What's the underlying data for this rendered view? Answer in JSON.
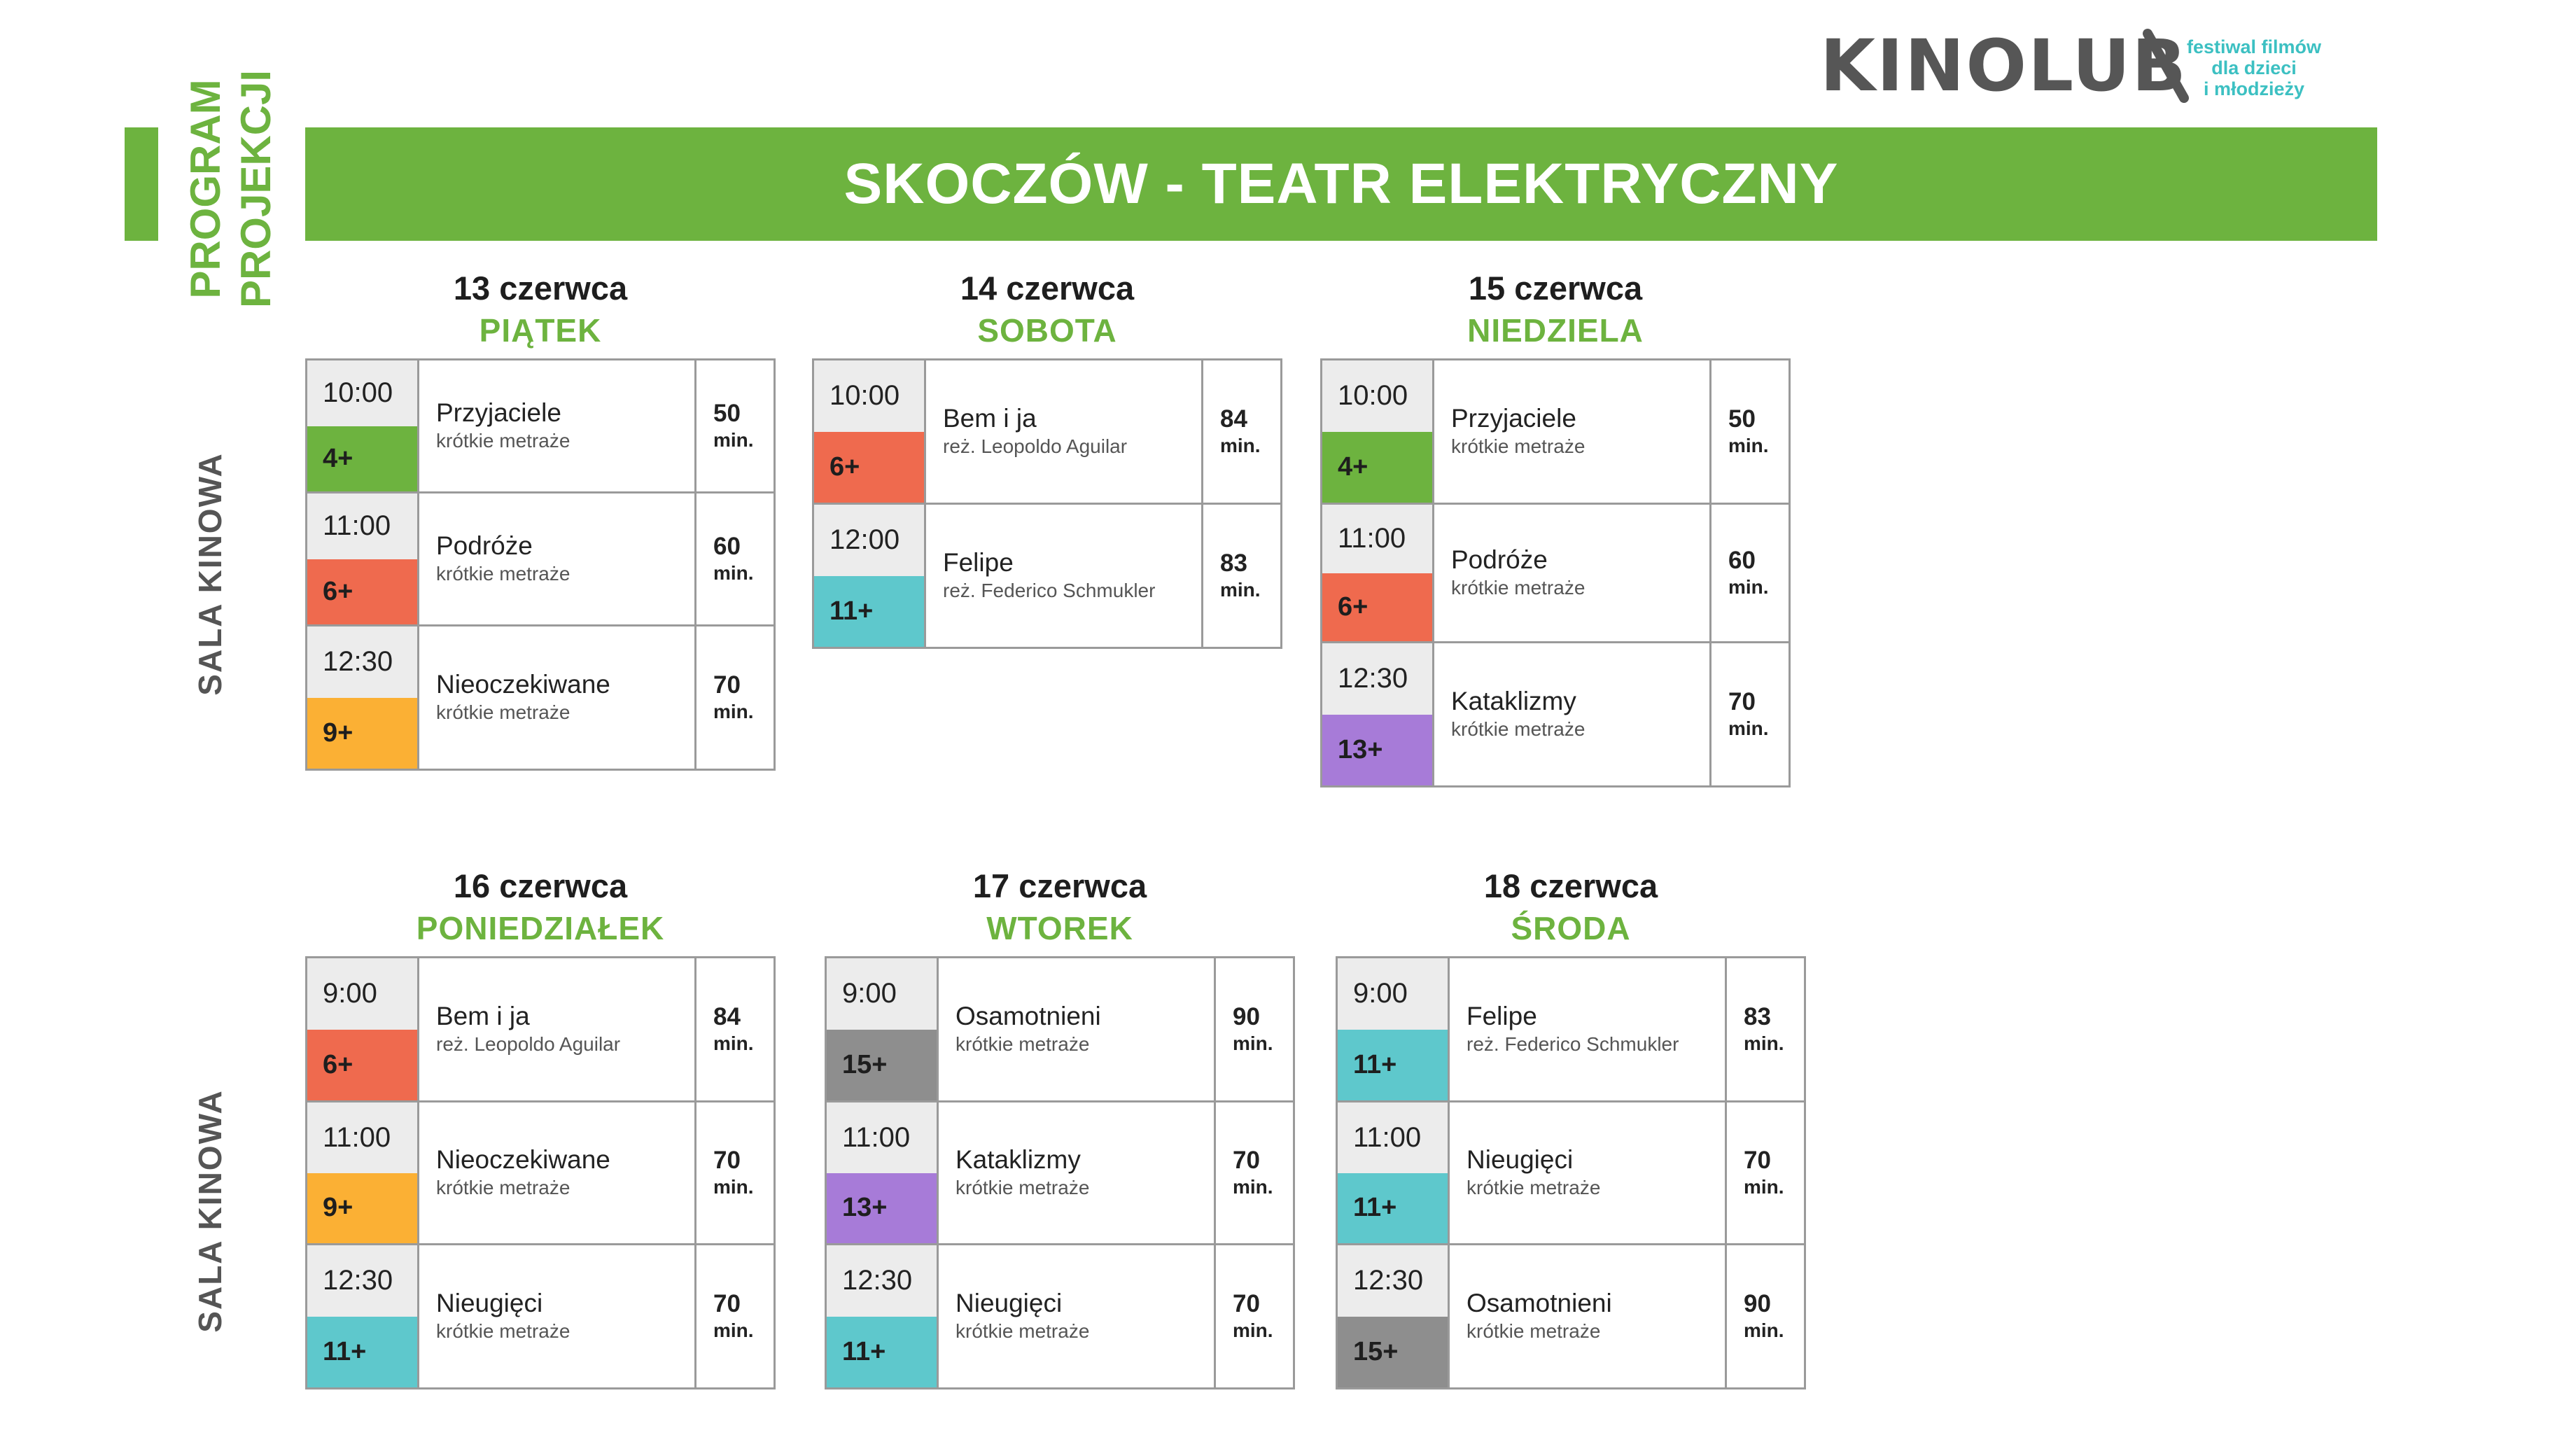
{
  "logo": {
    "wordmark": "KINOLUB",
    "tagline": [
      "festiwal filmów",
      "dla dzieci",
      "i młodzieży"
    ]
  },
  "side_title": [
    "PROGRAM",
    "PROJEKCJI"
  ],
  "banner_title": "SKOCZÓW - TEATR ELEKTRYCZNY",
  "section_label": "SALA KINOWA",
  "colors": {
    "brand_green": "#6db33f",
    "age_4": "#6db33f",
    "age_6": "#ef6a4e",
    "age_9": "#fbb034",
    "age_11": "#5ec8cc",
    "age_13": "#a77bd8",
    "age_15": "#8e8e8e",
    "time_bg": "#ececec"
  },
  "days": [
    {
      "date": "13 czerwca",
      "weekday": "PIĄTEK",
      "entries": [
        {
          "time": "10:00",
          "age": "4+",
          "title": "Przyjaciele",
          "subtitle": "krótkie metraże",
          "duration": "50",
          "unit": "min."
        },
        {
          "time": "11:00",
          "age": "6+",
          "title": "Podróże",
          "subtitle": "krótkie metraże",
          "duration": "60",
          "unit": "min."
        },
        {
          "time": "12:30",
          "age": "9+",
          "title": "Nieoczekiwane",
          "subtitle": "krótkie metraże",
          "duration": "70",
          "unit": "min."
        }
      ]
    },
    {
      "date": "14 czerwca",
      "weekday": "SOBOTA",
      "entries": [
        {
          "time": "10:00",
          "age": "6+",
          "title": "Bem i ja",
          "subtitle": "reż. Leopoldo Aguilar",
          "duration": "84",
          "unit": "min."
        },
        {
          "time": "12:00",
          "age": "11+",
          "title": "Felipe",
          "subtitle": "reż. Federico Schmukler",
          "duration": "83",
          "unit": "min."
        }
      ]
    },
    {
      "date": "15 czerwca",
      "weekday": "NIEDZIELA",
      "entries": [
        {
          "time": "10:00",
          "age": "4+",
          "title": "Przyjaciele",
          "subtitle": "krótkie metraże",
          "duration": "50",
          "unit": "min."
        },
        {
          "time": "11:00",
          "age": "6+",
          "title": "Podróże",
          "subtitle": "krótkie metraże",
          "duration": "60",
          "unit": "min."
        },
        {
          "time": "12:30",
          "age": "13+",
          "title": "Kataklizmy",
          "subtitle": "krótkie metraże",
          "duration": "70",
          "unit": "min."
        }
      ]
    },
    {
      "date": "16 czerwca",
      "weekday": "PONIEDZIAŁEK",
      "entries": [
        {
          "time": "9:00",
          "age": "6+",
          "title": "Bem i ja",
          "subtitle": "reż. Leopoldo Aguilar",
          "duration": "84",
          "unit": "min."
        },
        {
          "time": "11:00",
          "age": "9+",
          "title": "Nieoczekiwane",
          "subtitle": "krótkie metraże",
          "duration": "70",
          "unit": "min."
        },
        {
          "time": "12:30",
          "age": "11+",
          "title": "Nieugięci",
          "subtitle": "krótkie metraże",
          "duration": "70",
          "unit": "min."
        }
      ]
    },
    {
      "date": "17 czerwca",
      "weekday": "WTOREK",
      "entries": [
        {
          "time": "9:00",
          "age": "15+",
          "title": "Osamotnieni",
          "subtitle": "krótkie metraże",
          "duration": "90",
          "unit": "min."
        },
        {
          "time": "11:00",
          "age": "13+",
          "title": "Kataklizmy",
          "subtitle": "krótkie metraże",
          "duration": "70",
          "unit": "min."
        },
        {
          "time": "12:30",
          "age": "11+",
          "title": "Nieugięci",
          "subtitle": "krótkie metraże",
          "duration": "70",
          "unit": "min."
        }
      ]
    },
    {
      "date": "18 czerwca",
      "weekday": "ŚRODA",
      "entries": [
        {
          "time": "9:00",
          "age": "11+",
          "title": "Felipe",
          "subtitle": "reż. Federico Schmukler",
          "duration": "83",
          "unit": "min."
        },
        {
          "time": "11:00",
          "age": "11+",
          "title": "Nieugięci",
          "subtitle": "krótkie metraże",
          "duration": "70",
          "unit": "min."
        },
        {
          "time": "12:30",
          "age": "15+",
          "title": "Osamotnieni",
          "subtitle": "krótkie metraże",
          "duration": "90",
          "unit": "min."
        }
      ]
    }
  ]
}
